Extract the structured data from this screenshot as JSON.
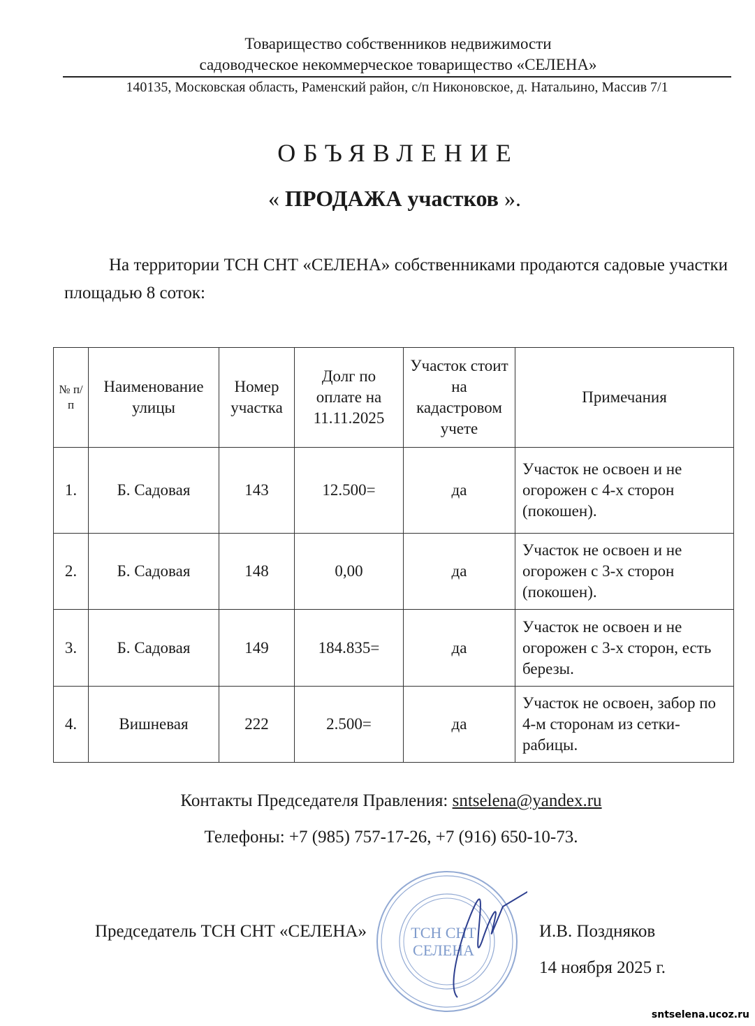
{
  "header": {
    "line1": "Товарищество собственников недвижимости",
    "line2": "садоводческое некоммерческое товарищество «СЕЛЕНА»",
    "address": "140135, Московская область, Раменский район, с/п Никоновское, д. Натальино, Массив 7/1"
  },
  "title": "ОБЪЯВЛЕНИЕ",
  "subtitle": {
    "open": "« ",
    "bold": "ПРОДАЖА  участков",
    "close": " »."
  },
  "intro": "На территории ТСН СНТ «СЕЛЕНА» собственниками продаются садовые участки площадью 8 соток:",
  "table": {
    "headers": [
      "№ п/п",
      "Наименование улицы",
      "Номер участка",
      "Долг по оплате на 11.11.2025",
      "Участок стоит на кадастровом учете",
      "Примечания"
    ],
    "rows": [
      [
        "1.",
        "Б. Садовая",
        "143",
        "12.500=",
        "да",
        "Участок не освоен и не огорожен с 4-х сторон (покошен)."
      ],
      [
        "2.",
        "Б. Садовая",
        "148",
        "0,00",
        "да",
        "Участок не освоен и не огорожен с 3-х сторон (покошен)."
      ],
      [
        "3.",
        "Б. Садовая",
        "149",
        "184.835=",
        "да",
        "Участок не освоен и не огорожен с 3-х сторон, есть березы."
      ],
      [
        "4.",
        "Вишневая",
        "222",
        "2.500=",
        "да",
        "Участок не освоен, забор по 4-м сторонам из сетки-рабицы."
      ]
    ]
  },
  "contacts": {
    "label": "Контакты Председателя Правления: ",
    "email": "sntselena@yandex.ru",
    "phones": "Телефоны:  +7 (985) 757-17-26,  +7 (916) 650-10-73."
  },
  "signature": {
    "position": "Председатель ТСН СНТ «СЕЛЕНА»",
    "name": "И.В. Поздняков",
    "date": "14 ноября 2025 г."
  },
  "stamp": {
    "center_line1": "ТСН СНТ",
    "center_line2": "СЕЛЕНА",
    "ink_color": "#6f8fc4"
  },
  "watermark": "sntselena.ucoz.ru"
}
